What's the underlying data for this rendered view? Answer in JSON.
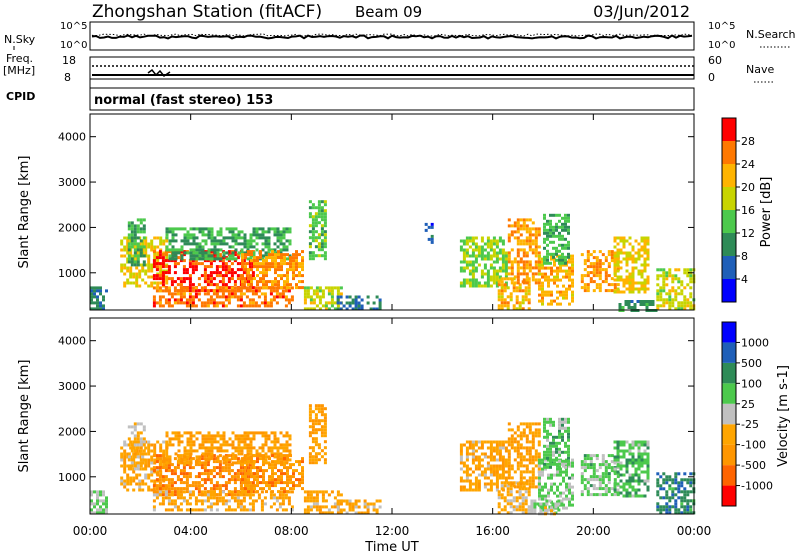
{
  "header": {
    "station": "Zhongshan Station (fitACF)",
    "beam": "Beam 09",
    "date": "03/Jun/2012"
  },
  "top_panels": {
    "nsky_label": "N.Sky",
    "nsearch_label": "N.Search",
    "nsky_ticks": [
      "10^5",
      "10^0"
    ],
    "nsearch_ticks": [
      "10^5",
      "10^0"
    ],
    "freq_label_1": "Freq.",
    "freq_label_2": "[MHz]",
    "freq_ticks": [
      "18",
      "8"
    ],
    "nave_label": "Nave",
    "nave_ticks": [
      "60",
      "0"
    ],
    "cpid_label": "CPID",
    "cpid_text": "normal (fast stereo) 153"
  },
  "colors": {
    "velocity": [
      "#ff0000",
      "#ff6400",
      "#ff9600",
      "#ffa500",
      "#c0c0c0",
      "#4cc94c",
      "#2e8b57",
      "#1f5fb8",
      "#0000ff"
    ],
    "power": [
      "#0000ff",
      "#1f5fb8",
      "#2e8b57",
      "#4cc94c",
      "#c8d400",
      "#ffb400",
      "#ff7800",
      "#ff0000"
    ]
  },
  "chart_data": [
    {
      "type": "heatmap",
      "title": "Power",
      "ylabel": "Slant Range [km]",
      "xlabel": "Time UT",
      "x_ticks": [
        "00:00",
        "04:00",
        "08:00",
        "12:00",
        "16:00",
        "20:00",
        "00:00"
      ],
      "y_ticks": [
        "1000",
        "2000",
        "3000",
        "4000"
      ],
      "ylim": [
        180,
        4500
      ],
      "colorbar": {
        "label": "Power [dB]",
        "ticks": [
          "4",
          "8",
          "12",
          "16",
          "20",
          "24",
          "28"
        ],
        "range": [
          0,
          32
        ]
      },
      "clusters": [
        {
          "t0": 0.0,
          "t1": 0.6,
          "r0": 200,
          "r1": 700,
          "value": 9
        },
        {
          "t0": 1.2,
          "t1": 3.0,
          "r0": 700,
          "r1": 1800,
          "value": 20
        },
        {
          "t0": 1.5,
          "t1": 2.2,
          "r0": 1200,
          "r1": 2200,
          "value": 12
        },
        {
          "t0": 2.5,
          "t1": 6.5,
          "r0": 600,
          "r1": 1500,
          "value": 29
        },
        {
          "t0": 2.5,
          "t1": 8.0,
          "r0": 250,
          "r1": 700,
          "value": 26
        },
        {
          "t0": 3.0,
          "t1": 8.0,
          "r0": 1300,
          "r1": 2000,
          "value": 12
        },
        {
          "t0": 6.0,
          "t1": 8.5,
          "r0": 700,
          "r1": 1500,
          "value": 24
        },
        {
          "t0": 8.5,
          "t1": 10.0,
          "r0": 200,
          "r1": 700,
          "value": 18
        },
        {
          "t0": 8.7,
          "t1": 9.4,
          "r0": 1300,
          "r1": 2600,
          "value": 14
        },
        {
          "t0": 9.8,
          "t1": 11.5,
          "r0": 200,
          "r1": 500,
          "value": 8
        },
        {
          "t0": 14.7,
          "t1": 16.5,
          "r0": 700,
          "r1": 1800,
          "value": 16
        },
        {
          "t0": 16.2,
          "t1": 17.5,
          "r0": 200,
          "r1": 900,
          "value": 22
        },
        {
          "t0": 16.6,
          "t1": 17.8,
          "r0": 800,
          "r1": 2200,
          "value": 24
        },
        {
          "t0": 17.8,
          "t1": 19.2,
          "r0": 300,
          "r1": 1400,
          "value": 22
        },
        {
          "t0": 18.0,
          "t1": 19.0,
          "r0": 1200,
          "r1": 2300,
          "value": 13
        },
        {
          "t0": 19.5,
          "t1": 21.0,
          "r0": 600,
          "r1": 1500,
          "value": 24
        },
        {
          "t0": 20.8,
          "t1": 22.2,
          "r0": 600,
          "r1": 1800,
          "value": 20
        },
        {
          "t0": 22.5,
          "t1": 24.0,
          "r0": 200,
          "r1": 1100,
          "value": 18
        },
        {
          "t0": 13.3,
          "t1": 13.6,
          "r0": 1700,
          "r1": 2100,
          "value": 6
        },
        {
          "t0": 21.0,
          "t1": 22.5,
          "r0": 200,
          "r1": 400,
          "value": 10
        }
      ]
    },
    {
      "type": "heatmap",
      "title": "Velocity",
      "ylabel": "Slant Range [km]",
      "xlabel": "Time UT",
      "x_ticks": [
        "00:00",
        "04:00",
        "08:00",
        "12:00",
        "16:00",
        "20:00",
        "00:00"
      ],
      "y_ticks": [
        "1000",
        "2000",
        "3000",
        "4000"
      ],
      "ylim": [
        180,
        4500
      ],
      "colorbar": {
        "label": "Velocity [m s-1]",
        "ticks": [
          "-1000",
          "-500",
          "-100",
          "-25",
          "25",
          "100",
          "500",
          "1000"
        ],
        "range": [
          -1200,
          1200
        ]
      },
      "clusters": [
        {
          "t0": 0.0,
          "t1": 0.6,
          "r0": 200,
          "r1": 700,
          "value": 150
        },
        {
          "t0": 1.2,
          "t1": 3.0,
          "r0": 700,
          "r1": 1800,
          "value": -300
        },
        {
          "t0": 1.5,
          "t1": 2.2,
          "r0": 1200,
          "r1": 2200,
          "value": -200
        },
        {
          "t0": 2.5,
          "t1": 6.5,
          "r0": 600,
          "r1": 1500,
          "value": -600
        },
        {
          "t0": 2.5,
          "t1": 8.0,
          "r0": 250,
          "r1": 700,
          "value": -300
        },
        {
          "t0": 3.0,
          "t1": 8.0,
          "r0": 1300,
          "r1": 2000,
          "value": -400
        },
        {
          "t0": 6.0,
          "t1": 8.5,
          "r0": 700,
          "r1": 1500,
          "value": -500
        },
        {
          "t0": 8.5,
          "t1": 10.0,
          "r0": 200,
          "r1": 700,
          "value": -300
        },
        {
          "t0": 8.7,
          "t1": 9.4,
          "r0": 1300,
          "r1": 2600,
          "value": -450
        },
        {
          "t0": 9.8,
          "t1": 11.5,
          "r0": 200,
          "r1": 500,
          "value": -300
        },
        {
          "t0": 14.7,
          "t1": 16.5,
          "r0": 700,
          "r1": 1800,
          "value": -300
        },
        {
          "t0": 16.2,
          "t1": 17.5,
          "r0": 200,
          "r1": 900,
          "value": -200
        },
        {
          "t0": 16.6,
          "t1": 17.8,
          "r0": 800,
          "r1": 2200,
          "value": -350
        },
        {
          "t0": 17.8,
          "t1": 19.2,
          "r0": 300,
          "r1": 1400,
          "value": 200
        },
        {
          "t0": 18.0,
          "t1": 19.0,
          "r0": 1200,
          "r1": 2300,
          "value": 250
        },
        {
          "t0": 19.5,
          "t1": 21.0,
          "r0": 600,
          "r1": 1500,
          "value": 200
        },
        {
          "t0": 20.8,
          "t1": 22.2,
          "r0": 600,
          "r1": 1800,
          "value": 300
        },
        {
          "t0": 22.5,
          "t1": 24.0,
          "r0": 200,
          "r1": 1100,
          "value": 600
        },
        {
          "t0": 17.5,
          "t1": 18.8,
          "r0": 200,
          "r1": 500,
          "value": 80
        },
        {
          "t0": 17.8,
          "t1": 18.4,
          "r0": 200,
          "r1": 350,
          "value": 0
        }
      ]
    }
  ]
}
